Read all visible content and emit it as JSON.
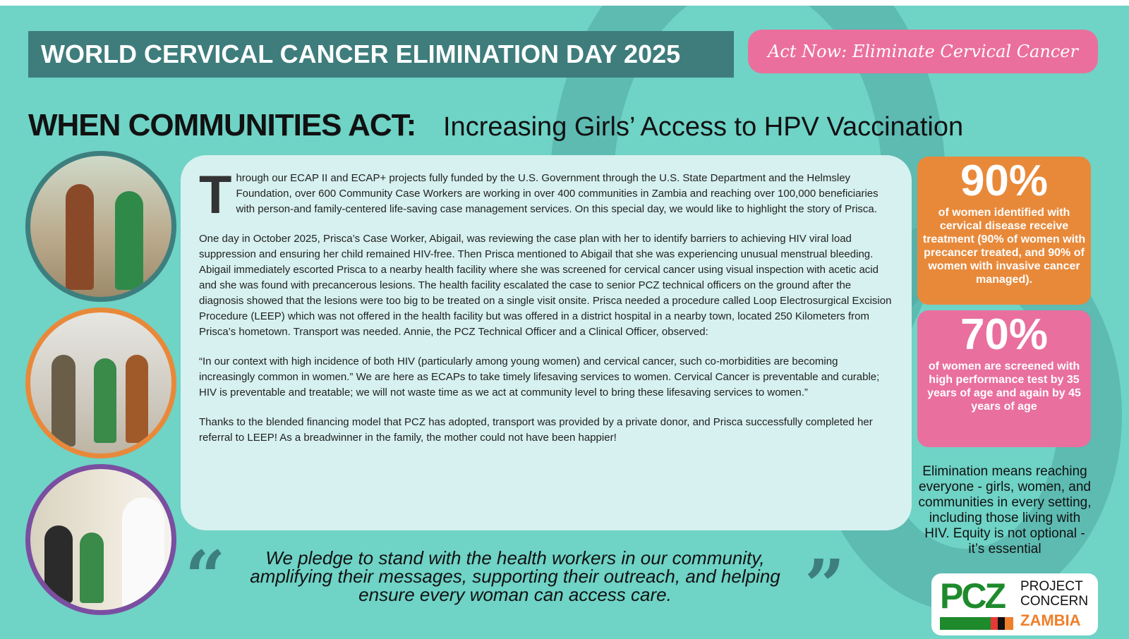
{
  "header": {
    "title": "WORLD CERVICAL CANCER ELIMINATION DAY 2025",
    "tagline": "Act Now: Eliminate Cervical Cancer"
  },
  "headline": {
    "bold": "WHEN COMMUNITIES ACT:",
    "sub": "Increasing Girls’ Access to HPV Vaccination"
  },
  "story": {
    "dropcap": "T",
    "paragraphs": [
      "hrough our ECAP II and ECAP+ projects fully funded by the U.S. Government through the U.S. State Department and the Helmsley Foundation, over 600 Community Case Workers are working in over 400 communities in Zambia and reaching over 100,000 beneficiaries with person-and family-centered life-saving case management services. On this special day, we would like to highlight the story of Prisca.",
      "One day in October 2025, Prisca’s Case Worker, Abigail, was reviewing the case plan with her to identify barriers to achieving HIV viral load suppression and ensuring her child remained HIV-free. Then Prisca mentioned to Abigail that she was experiencing unusual menstrual bleeding. Abigail immediately escorted Prisca to a nearby health facility where she was screened for cervical cancer using visual inspection with acetic acid and she was found with precancerous lesions. The health facility escalated the case to senior PCZ technical officers on the ground after the diagnosis showed that the lesions were too big to be treated on a single visit onsite. Prisca needed a procedure called Loop Electrosurgical Excision Procedure (LEEP) which was not offered in the health facility but was offered in a district hospital in a nearby town, located 250 Kilometers from Prisca’s hometown. Transport was needed. Annie, the PCZ Technical Officer and a Clinical Officer, observed:",
      "“In our context with high incidence of both HIV (particularly among young women) and cervical cancer, such co-morbidities are becoming increasingly common in women.” We are here as ECAPs to take timely lifesaving services to women. Cervical Cancer is preventable and curable; HIV is preventable and treatable; we will not waste time as we act at community level to bring these lifesaving services to women.”",
      "Thanks to the blended financing model that PCZ has adopted, transport was provided by a private donor, and Prisca successfully completed her referral to LEEP! As a breadwinner in the family, the mother could not have been happier!"
    ]
  },
  "stats": [
    {
      "value": "90%",
      "text": "of women identified with cervical disease receive treatment (90% of women with precancer treated, and 90% of women with invasive cancer managed).",
      "color": "#e8893a"
    },
    {
      "value": "70%",
      "text": "of women are screened with high performance test by 35 years of age and again by 45 years of age",
      "color": "#e96f9e"
    }
  ],
  "equity": "Elimination means reaching everyone - girls, women, and communities in every setting, including those living with HIV. Equity is not optional - it’s essential",
  "pledge": "We pledge to stand with the health workers in our community, amplifying their messages, supporting their outreach, and helping ensure every woman can access care.",
  "quotes": {
    "open": "“",
    "close": "”"
  },
  "logo": {
    "mark": "PCZ",
    "line1": "PROJECT",
    "line2": "CONCERN",
    "line3": "ZAMBIA"
  },
  "colors": {
    "background": "#6fd3c6",
    "banner": "#3e7d7c",
    "pink": "#eb6f9c",
    "orange": "#e8893a",
    "purple": "#7a4ea0"
  }
}
